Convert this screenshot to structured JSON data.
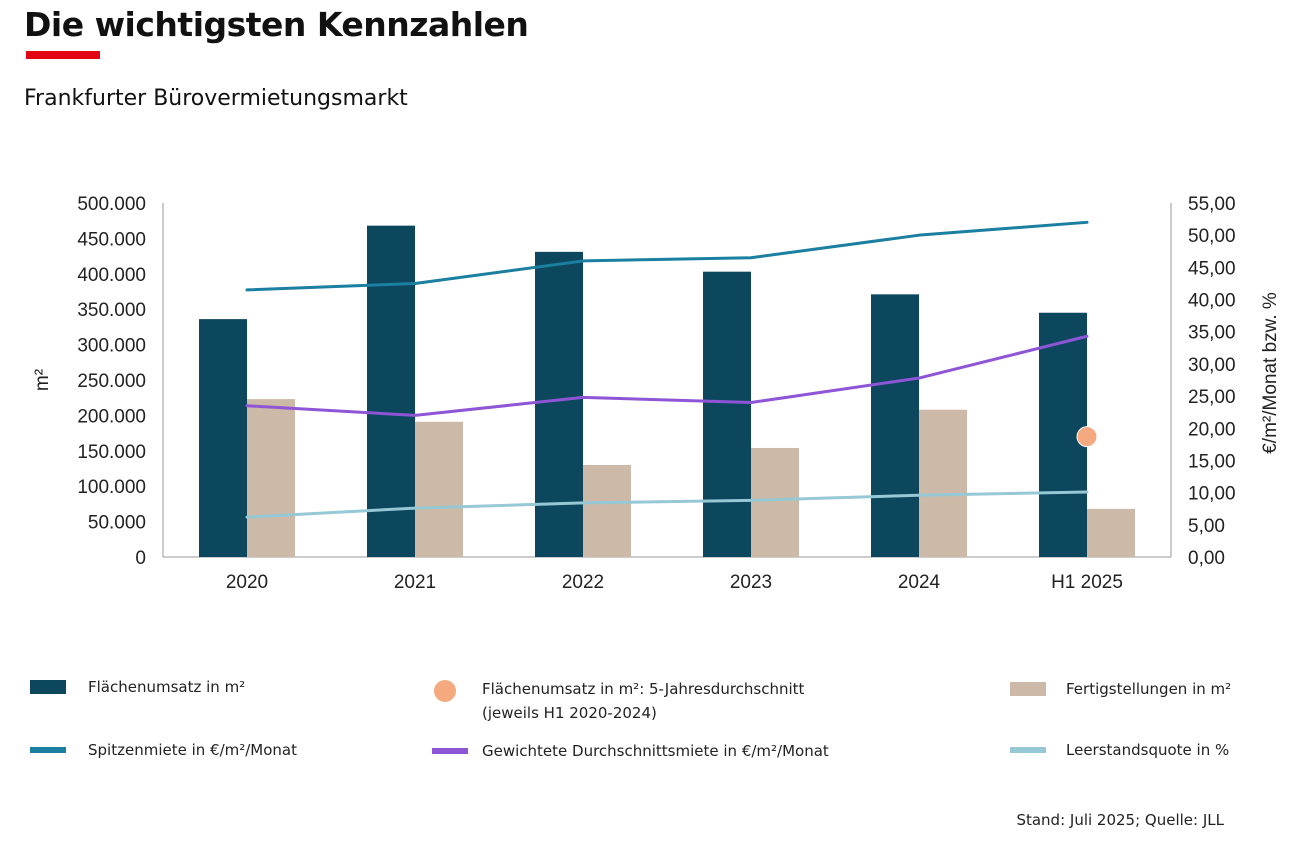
{
  "header": {
    "title": "Die wichtigsten Kennzahlen",
    "subtitle": "Frankfurter Bürovermietungsmarkt",
    "accent_color": "#e30613"
  },
  "chart_data": {
    "type": "bar",
    "categories": [
      "2020",
      "2021",
      "2022",
      "2023",
      "2024",
      "H1 2025"
    ],
    "y_left": {
      "label": "m²",
      "ylim": [
        0,
        500000
      ],
      "ticks": [
        "500.000",
        "450.000",
        "400.000",
        "350.000",
        "300.000",
        "250.000",
        "200.000",
        "150.000",
        "100.000",
        "50.000",
        "0"
      ]
    },
    "y_right": {
      "label": "€/m²/Monat bzw. %",
      "ylim": [
        0,
        55
      ],
      "ticks": [
        "55,00",
        "50,00",
        "45,00",
        "40,00",
        "35,00",
        "30,00",
        "25,00",
        "20,00",
        "15,00",
        "10,00",
        "5,00",
        "0,00"
      ]
    },
    "bar_series": [
      {
        "name": "Flächenumsatz in m²",
        "axis": "left",
        "color": "#0c475e",
        "values": [
          336000,
          468000,
          431000,
          403000,
          371000,
          345000
        ]
      },
      {
        "name": "Fertigstellungen in m²",
        "axis": "left",
        "color": "#cdb9a7",
        "values": [
          223000,
          191000,
          130000,
          154000,
          208000,
          68000
        ]
      }
    ],
    "line_series": [
      {
        "name": "Spitzenmiete in €/m²/Monat",
        "axis": "right",
        "color": "#1a7fa0",
        "values": [
          41.5,
          42.5,
          46.0,
          46.5,
          50.0,
          52.0
        ]
      },
      {
        "name": "Gewichtete Durchschnittsmiete in €/m²/Monat",
        "axis": "right",
        "color": "#8e55d6",
        "values": [
          23.5,
          22.0,
          24.8,
          24.0,
          27.8,
          34.3
        ]
      },
      {
        "name": "Leerstandsquote in %",
        "axis": "right",
        "color": "#96c8d6",
        "values": [
          6.2,
          7.6,
          8.4,
          8.8,
          9.6,
          10.1
        ]
      }
    ],
    "point_series": [
      {
        "name": "Flächenumsatz in m²: 5-Jahresdurchschnitt (jeweils H1 2020-2024)",
        "axis": "right",
        "color": "#f5a97f",
        "category": "H1 2025",
        "value": 18.7
      }
    ],
    "grid": false,
    "legend_position": "bottom"
  },
  "legend": {
    "bar_umsatz": "Flächenumsatz in m²",
    "avg_line1": "Flächenumsatz in m²: 5-Jahresdurchschnitt",
    "avg_line2": "(jeweils H1 2020-2024)",
    "bar_fertig": "Fertigstellungen in m²",
    "line_spitze": "Spitzenmiete in €/m²/Monat",
    "line_durchschnitt": "Gewichtete Durchschnittsmiete in €/m²/Monat",
    "line_leerstand": "Leerstandsquote in %"
  },
  "footer": {
    "source": "Stand: Juli 2025; Quelle: JLL"
  }
}
